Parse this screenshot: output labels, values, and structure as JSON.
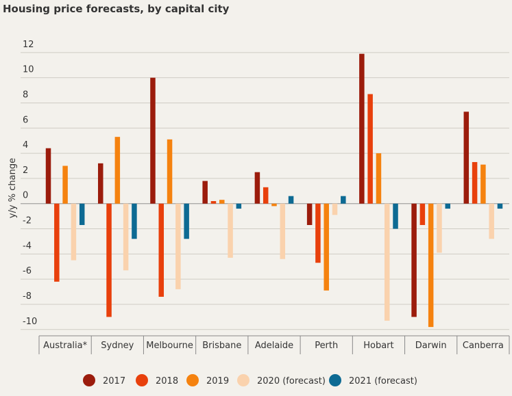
{
  "chart_data": {
    "type": "bar",
    "title": "Housing price forecasts, by capital city",
    "y_label": "y/y % change",
    "categories": [
      "Australia*",
      "Sydney",
      "Melbourne",
      "Brisbane",
      "Adelaide",
      "Perth",
      "Hobart",
      "Darwin",
      "Canberra"
    ],
    "series": [
      {
        "name": "2017",
        "color": "#9b1c0c",
        "values": [
          4.4,
          3.2,
          10.0,
          1.8,
          2.5,
          -1.7,
          11.9,
          -9.0,
          7.3
        ]
      },
      {
        "name": "2018",
        "color": "#e8400c",
        "values": [
          -6.2,
          -9.0,
          -7.4,
          0.2,
          1.3,
          -4.7,
          8.7,
          -1.7,
          3.3
        ]
      },
      {
        "name": "2019",
        "color": "#f5820f",
        "values": [
          3.0,
          5.3,
          5.1,
          0.3,
          -0.2,
          -6.9,
          4.0,
          -9.8,
          3.1
        ]
      },
      {
        "name": "2020 (forecast)",
        "color": "#fad2ad",
        "values": [
          -4.5,
          -5.3,
          -6.8,
          -4.3,
          -4.4,
          -0.9,
          -9.3,
          -3.9,
          -2.8
        ]
      },
      {
        "name": "2021 (forecast)",
        "color": "#0d6a93",
        "values": [
          -1.7,
          -2.8,
          -2.8,
          -0.4,
          0.6,
          0.6,
          -2.0,
          -0.4,
          -0.4
        ]
      }
    ],
    "ylim": [
      -10.5,
      14
    ],
    "yticks": [
      -10,
      -8,
      -6,
      -4,
      -2,
      0,
      2,
      4,
      6,
      8,
      10,
      12
    ],
    "grid": true
  }
}
